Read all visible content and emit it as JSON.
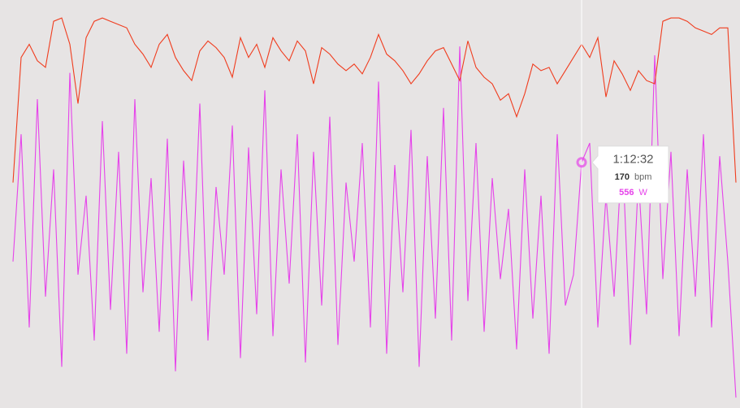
{
  "chart_data": {
    "type": "line",
    "series": [
      {
        "color": "#f03c1e",
        "axis": "y2",
        "values": [
          128,
          166,
          170,
          165,
          163,
          177,
          178,
          170,
          152,
          172,
          177,
          178,
          177,
          176,
          175,
          170,
          167,
          163,
          170,
          173,
          166,
          162,
          159,
          168,
          171,
          169,
          166,
          160,
          172,
          166,
          170,
          163,
          172,
          168,
          165,
          171,
          168,
          158,
          169,
          167,
          164,
          162,
          164,
          161,
          166,
          173,
          167,
          165,
          162,
          158,
          161,
          165,
          168,
          169,
          164,
          159,
          171,
          163,
          160,
          158,
          153,
          155,
          148,
          155,
          164,
          162,
          163,
          158,
          162,
          166,
          170,
          166,
          172,
          154,
          165,
          161,
          156,
          162,
          159,
          158,
          177,
          178,
          178,
          177,
          175,
          174,
          173,
          175,
          175,
          128
        ]
      },
      {
        "color": "#e643ea",
        "values": [
          330,
          620,
          180,
          700,
          250,
          540,
          90,
          760,
          300,
          480,
          150,
          650,
          220,
          580,
          120,
          700,
          260,
          520,
          170,
          610,
          80,
          560,
          240,
          690,
          150,
          500,
          300,
          640,
          110,
          590,
          210,
          720,
          160,
          540,
          280,
          620,
          100,
          580,
          230,
          660,
          140,
          510,
          330,
          600,
          180,
          740,
          120,
          550,
          260,
          630,
          90,
          570,
          200,
          680,
          150,
          820,
          240,
          600,
          170,
          520,
          290,
          450,
          130,
          540,
          200,
          480,
          120,
          620,
          230,
          300,
          556,
          600,
          180,
          480,
          250,
          590,
          140,
          520,
          210,
          800,
          290,
          580,
          160,
          540,
          250,
          620,
          180,
          570,
          330,
          20
        ]
      }
    ],
    "ylim": [
      0,
      900
    ],
    "y2lim": [
      60,
      180
    ],
    "tooltip": {
      "time": "1:12:32",
      "heart_rate": 170,
      "heart_rate_unit": "bpm",
      "power": 556,
      "power_unit": "W"
    }
  }
}
